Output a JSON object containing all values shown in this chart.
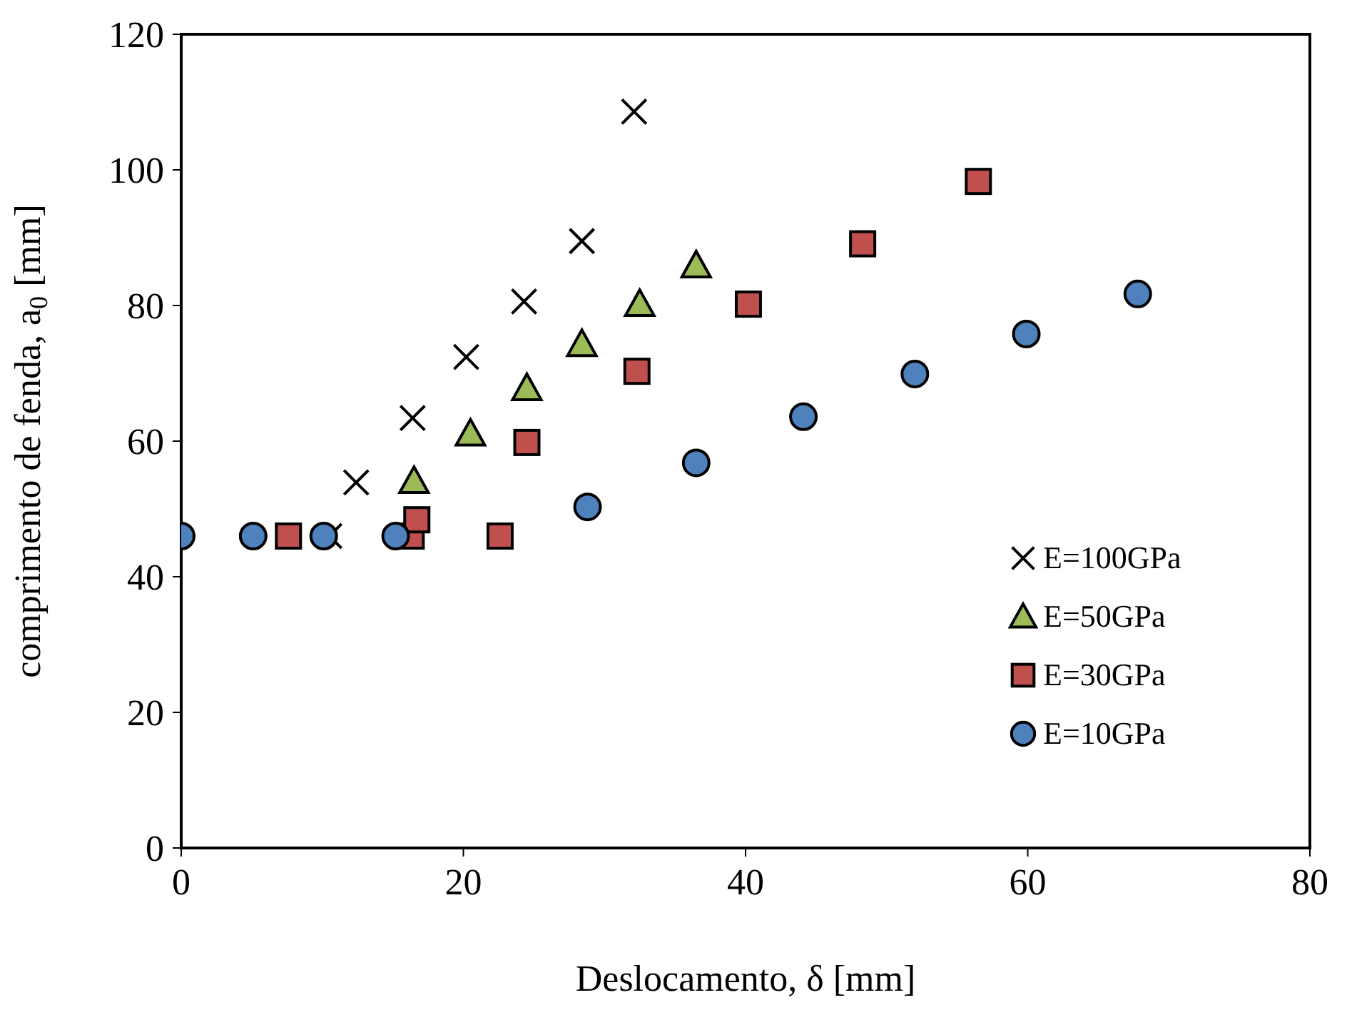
{
  "chart_data": {
    "type": "scatter",
    "xlabel": "Deslocamento, δ [mm]",
    "ylabel": "comprimento de fenda, a$_{0}$ [mm]",
    "xlim": [
      0,
      80
    ],
    "xticks": [
      0,
      20,
      40,
      60,
      80
    ],
    "ylim": [
      0,
      120
    ],
    "yticks": [
      0,
      20,
      40,
      60,
      80,
      100,
      120
    ],
    "grid": false,
    "legend": "right",
    "series": [
      {
        "name": "E=100GPa",
        "color": "#000000",
        "marker": "cross",
        "x": [
          10.5,
          12.4,
          16.4,
          20.2,
          24.3,
          28.4,
          32.1
        ],
        "values": [
          46,
          53.9,
          63.4,
          72.4,
          80.6,
          89.5,
          108.6
        ]
      },
      {
        "name": "E=50GPa",
        "color": "#9bbb59",
        "marker": "triangle",
        "x": [
          16.5,
          20.5,
          24.5,
          28.4,
          32.5,
          36.5
        ],
        "values": [
          54.1,
          61.1,
          67.8,
          74.3,
          80.2,
          85.9
        ]
      },
      {
        "name": "E=30GPa",
        "color": "#c0504d",
        "marker": "square",
        "x": [
          7.6,
          16.3,
          16.7,
          22.6,
          24.5,
          32.3,
          40.2,
          48.3,
          56.5
        ],
        "values": [
          46,
          46,
          48.4,
          46,
          59.8,
          70.3,
          80.2,
          89.1,
          98.3
        ]
      },
      {
        "name": "E=10GPa",
        "color": "#4f81bd",
        "marker": "circle",
        "x": [
          0,
          5.1,
          10.1,
          15.2,
          28.8,
          36.5,
          44.1,
          52.0,
          59.9,
          67.8
        ],
        "values": [
          46,
          46,
          46,
          46,
          50.3,
          56.8,
          63.6,
          69.9,
          75.8,
          81.7
        ]
      }
    ]
  }
}
